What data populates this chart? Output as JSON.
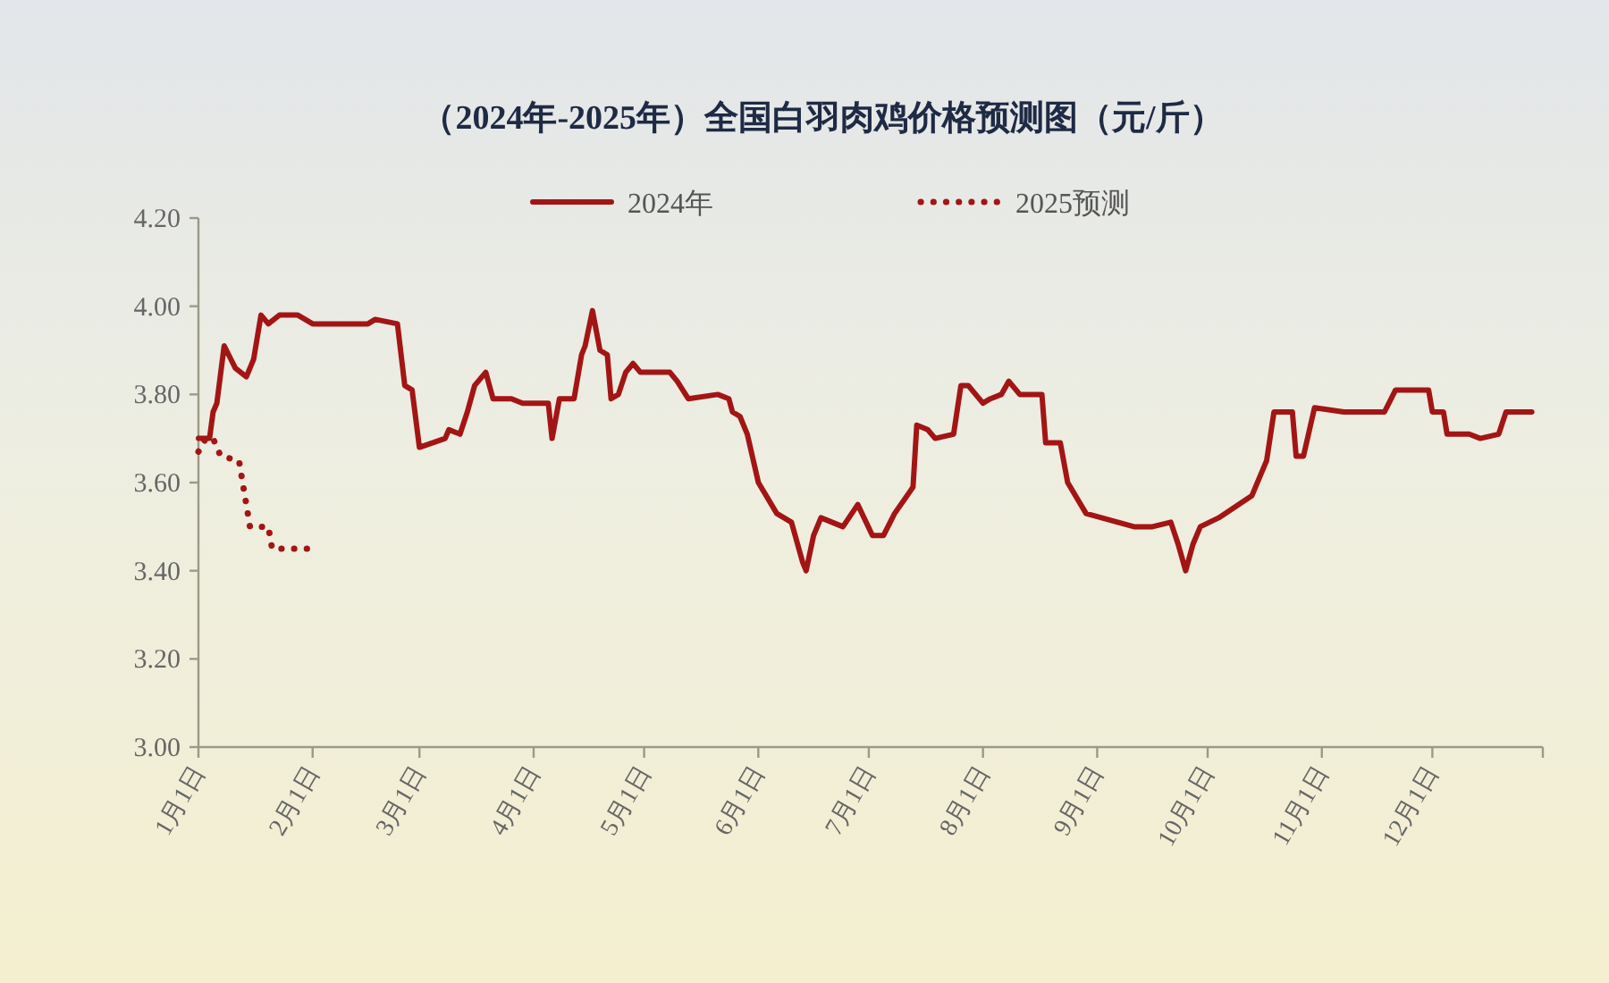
{
  "chart_data": {
    "type": "line",
    "title": "（2024年-2025年）全国白羽肉鸡价格预测图（元/斤）",
    "series": [
      {
        "name": "2024年",
        "color": "#a31515",
        "line_style": "solid",
        "x": [
          "--01-01",
          "--01-04",
          "--01-05",
          "--01-06",
          "--01-08",
          "--01-11",
          "--01-14",
          "--01-16",
          "--01-18",
          "--01-20",
          "--01-23",
          "--01-28",
          "--02-01",
          "--02-16",
          "--02-18",
          "--02-24",
          "--02-26",
          "--02-28",
          "--03-01",
          "--03-08",
          "--03-09",
          "--03-12",
          "--03-14",
          "--03-16",
          "--03-19",
          "--03-21",
          "--03-26",
          "--03-29",
          "--04-05",
          "--04-06",
          "--04-08",
          "--04-12",
          "--04-14",
          "--04-15",
          "--04-17",
          "--04-19",
          "--04-21",
          "--04-22",
          "--04-24",
          "--04-26",
          "--04-28",
          "--04-30",
          "--05-08",
          "--05-10",
          "--05-13",
          "--05-21",
          "--05-24",
          "--05-25",
          "--05-27",
          "--05-29",
          "--06-01",
          "--06-06",
          "--06-10",
          "--06-13",
          "--06-14",
          "--06-16",
          "--06-18",
          "--06-24",
          "--06-28",
          "--07-02",
          "--07-05",
          "--07-08",
          "--07-13",
          "--07-14",
          "--07-17",
          "--07-19",
          "--07-24",
          "--07-26",
          "--07-28",
          "--08-01",
          "--08-03",
          "--08-06",
          "--08-08",
          "--08-11",
          "--08-17",
          "--08-18",
          "--08-22",
          "--08-24",
          "--08-29",
          "--09-11",
          "--09-16",
          "--09-21",
          "--09-23",
          "--09-25",
          "--09-27",
          "--09-29",
          "--10-04",
          "--10-13",
          "--10-17",
          "--10-19",
          "--10-24",
          "--10-25",
          "--10-27",
          "--10-30",
          "--11-07",
          "--11-18",
          "--11-21",
          "--11-30",
          "--12-01",
          "--12-04",
          "--12-05",
          "--12-11",
          "--12-14",
          "--12-19",
          "--12-21",
          "--12-28"
        ],
        "values": [
          3.7,
          3.7,
          3.76,
          3.78,
          3.91,
          3.86,
          3.84,
          3.88,
          3.98,
          3.96,
          3.98,
          3.98,
          3.96,
          3.96,
          3.97,
          3.96,
          3.82,
          3.81,
          3.68,
          3.7,
          3.72,
          3.71,
          3.76,
          3.82,
          3.85,
          3.79,
          3.79,
          3.78,
          3.78,
          3.7,
          3.79,
          3.79,
          3.89,
          3.91,
          3.99,
          3.9,
          3.89,
          3.79,
          3.8,
          3.85,
          3.87,
          3.85,
          3.85,
          3.83,
          3.79,
          3.8,
          3.79,
          3.76,
          3.75,
          3.71,
          3.6,
          3.53,
          3.51,
          3.42,
          3.4,
          3.48,
          3.52,
          3.5,
          3.55,
          3.48,
          3.48,
          3.53,
          3.59,
          3.73,
          3.72,
          3.7,
          3.71,
          3.82,
          3.82,
          3.78,
          3.79,
          3.8,
          3.83,
          3.8,
          3.8,
          3.69,
          3.69,
          3.6,
          3.53,
          3.5,
          3.5,
          3.51,
          3.46,
          3.4,
          3.46,
          3.5,
          3.52,
          3.57,
          3.65,
          3.76,
          3.76,
          3.66,
          3.66,
          3.77,
          3.76,
          3.76,
          3.81,
          3.81,
          3.76,
          3.76,
          3.71,
          3.71,
          3.7,
          3.71,
          3.76,
          3.76
        ]
      },
      {
        "name": "2025预测",
        "color": "#a31515",
        "line_style": "dotted",
        "x": [
          "--01-01",
          "--01-03",
          "--01-05",
          "--01-07",
          "--01-12",
          "--01-13",
          "--01-14",
          "--01-15",
          "--01-20",
          "--01-21",
          "--01-31"
        ],
        "values": [
          3.67,
          3.7,
          3.7,
          3.66,
          3.65,
          3.6,
          3.55,
          3.5,
          3.5,
          3.45,
          3.45
        ]
      }
    ],
    "xlim": [
      "--01-01",
      "--12-31"
    ],
    "xticks": [
      {
        "value": "--01-01",
        "label": "1月1日"
      },
      {
        "value": "--02-01",
        "label": "2月1日"
      },
      {
        "value": "--03-01",
        "label": "3月1日"
      },
      {
        "value": "--04-01",
        "label": "4月1日"
      },
      {
        "value": "--05-01",
        "label": "5月1日"
      },
      {
        "value": "--06-01",
        "label": "6月1日"
      },
      {
        "value": "--07-01",
        "label": "7月1日"
      },
      {
        "value": "--08-01",
        "label": "8月1日"
      },
      {
        "value": "--09-01",
        "label": "9月1日"
      },
      {
        "value": "--10-01",
        "label": "10月1日"
      },
      {
        "value": "--11-01",
        "label": "11月1日"
      },
      {
        "value": "--12-01",
        "label": "12月1日"
      },
      {
        "value": "--12-31",
        "label": null
      }
    ],
    "ylim": [
      3.0,
      4.2
    ],
    "yticks": [
      {
        "value": 3.0,
        "label": "3.00"
      },
      {
        "value": 3.2,
        "label": "3.20"
      },
      {
        "value": 3.4,
        "label": "3.40"
      },
      {
        "value": 3.6,
        "label": "3.60"
      },
      {
        "value": 3.8,
        "label": "3.80"
      },
      {
        "value": 4.0,
        "label": "4.00"
      },
      {
        "value": 4.2,
        "label": "4.20"
      }
    ],
    "grid": false,
    "legend": "top",
    "marker": "none"
  }
}
